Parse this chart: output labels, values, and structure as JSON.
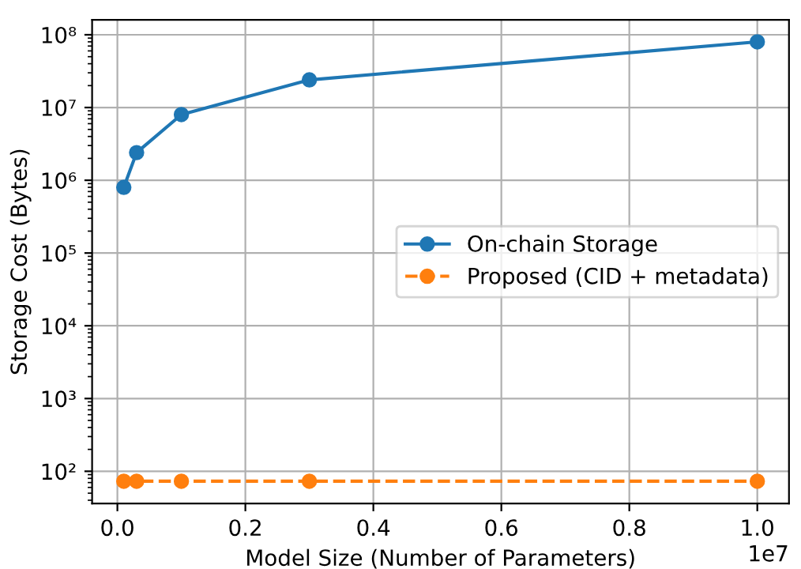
{
  "chart_data": {
    "type": "line",
    "xlabel": "Model Size (Number of Parameters)",
    "ylabel": "Storage Cost (Bytes)",
    "log": "y",
    "grid": true,
    "legend": "center right",
    "marker": "circle",
    "x": [
      0.01,
      0.03,
      0.1,
      0.3,
      1.0
    ],
    "series": [
      {
        "name": "On-chain Storage",
        "color": "#1f77b4",
        "line_style": "solid",
        "values": [
          800000,
          2400000,
          8000000,
          24000000,
          80000000
        ]
      },
      {
        "name": "Proposed (CID + metadata)",
        "color": "#ff7f0e",
        "line_style": "dashed",
        "values": [
          73,
          73,
          73,
          73,
          73
        ]
      }
    ],
    "xlim": [
      -0.0395,
      1.0495
    ],
    "ylim": [
      36,
      160000000
    ],
    "xticks": [
      {
        "value": 0,
        "label": "0.0"
      },
      0.2,
      0.4,
      0.6,
      0.8,
      {
        "value": 1,
        "label": "1.0"
      }
    ],
    "yticks": [
      {
        "value": 100,
        "label": "10²"
      },
      {
        "value": 1000,
        "label": "10³"
      },
      {
        "value": 10000,
        "label": "10⁴"
      },
      {
        "value": 100000,
        "label": "10⁵"
      },
      {
        "value": 1000000,
        "label": "10⁶"
      },
      {
        "value": 10000000,
        "label": "10⁷"
      },
      {
        "value": 100000000,
        "label": "10⁸"
      }
    ],
    "annotations": [
      "1e7"
    ]
  }
}
